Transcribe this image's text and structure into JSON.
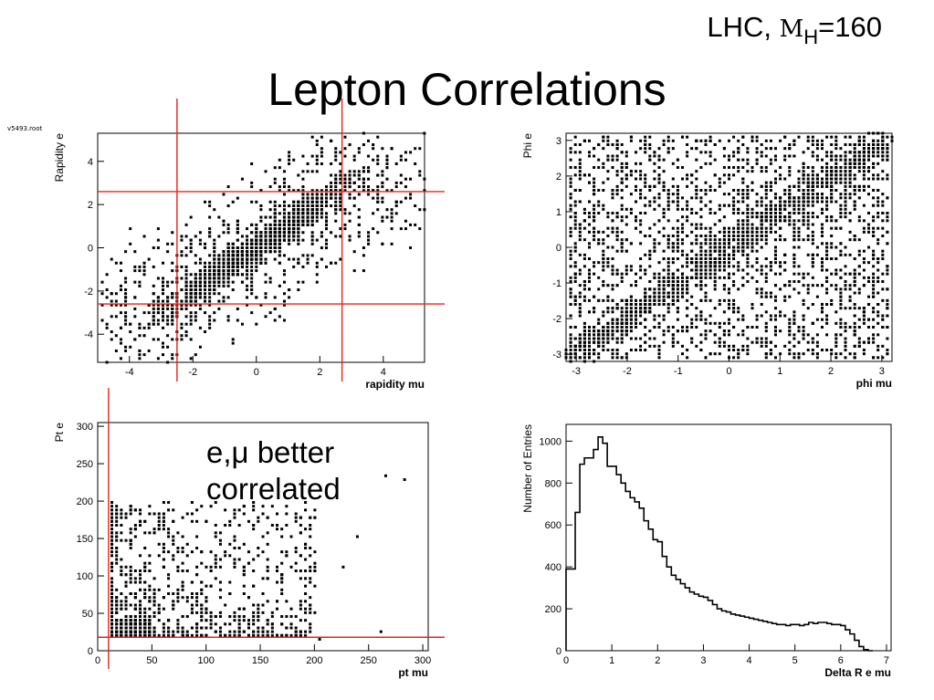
{
  "slide": {
    "title": "Lepton Correlations",
    "subtitle_prefix": "LHC, ",
    "subtitle_m": "M",
    "subtitle_sub": "H",
    "subtitle_suffix": "=160",
    "file_label": "v5493.root",
    "annotation_line1": "e,μ better",
    "annotation_line2": "correlated"
  },
  "colors": {
    "marker": "#000000",
    "cut_line": "#e8231a",
    "frame": "#000000"
  },
  "chart_data": [
    {
      "id": "rapidity",
      "type": "scatter",
      "xlabel": "rapidity mu",
      "ylabel": "Rapidity e",
      "xlim": [
        -5,
        5.3
      ],
      "ylim": [
        -5.3,
        5.3
      ],
      "xticks": [
        -4,
        -2,
        0,
        2,
        4
      ],
      "yticks": [
        -4,
        -2,
        0,
        2,
        4
      ],
      "description_of_data": "dense band along y = x plus broad scatter within |eta|<5",
      "cut_lines": {
        "vertical": [
          -2.5,
          2.7
        ],
        "horizontal": [
          2.6,
          -2.6
        ]
      }
    },
    {
      "id": "phi",
      "type": "scatter",
      "xlabel": "phi mu",
      "ylabel": "Phi e",
      "xlim": [
        -3.2,
        3.2
      ],
      "ylim": [
        -3.2,
        3.2
      ],
      "xticks": [
        -3,
        -2,
        -1,
        0,
        1,
        2,
        3
      ],
      "yticks": [
        -3,
        -2,
        -1,
        0,
        1,
        2,
        3
      ],
      "description_of_data": "uniform fill with dense diagonal band along y = x"
    },
    {
      "id": "pt",
      "type": "scatter",
      "xlabel": "pt mu",
      "ylabel": "Pt e",
      "xlim": [
        0,
        305
      ],
      "ylim": [
        0,
        305
      ],
      "xticks": [
        0,
        50,
        100,
        150,
        200,
        250,
        300
      ],
      "yticks": [
        0,
        50,
        100,
        150,
        200,
        250,
        300
      ],
      "description_of_data": "dense cluster near pt ~ 20-50, sparse tail to 300",
      "cut_lines": {
        "vertical": [
          10
        ],
        "horizontal": [
          18
        ]
      }
    },
    {
      "id": "deltaR",
      "type": "histogram",
      "xlabel": "Delta R e mu",
      "ylabel": "Number of Entries",
      "xlim": [
        0,
        7.1
      ],
      "ylim": [
        0,
        1080
      ],
      "xticks": [
        0,
        1,
        2,
        3,
        4,
        5,
        6,
        7
      ],
      "yticks": [
        0,
        200,
        400,
        600,
        800,
        1000
      ],
      "bin_width": 0.1,
      "bins_start": 0,
      "values": [
        390,
        390,
        660,
        890,
        920,
        920,
        960,
        1020,
        990,
        880,
        880,
        840,
        800,
        760,
        730,
        710,
        680,
        620,
        580,
        530,
        520,
        450,
        400,
        360,
        340,
        320,
        300,
        280,
        270,
        260,
        255,
        240,
        220,
        200,
        190,
        185,
        175,
        170,
        165,
        160,
        155,
        150,
        145,
        140,
        135,
        130,
        125,
        125,
        120,
        125,
        125,
        120,
        125,
        135,
        130,
        135,
        135,
        130,
        125,
        125,
        120,
        100,
        80,
        50,
        20,
        5,
        0
      ]
    }
  ]
}
